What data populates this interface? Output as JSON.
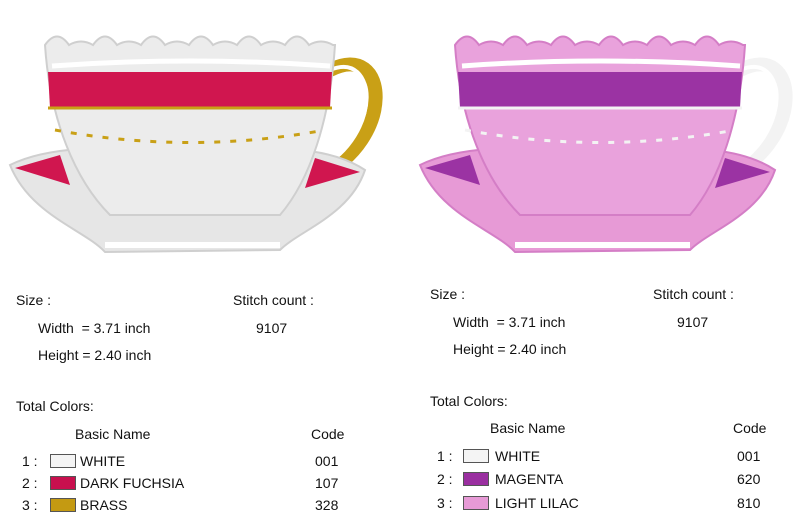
{
  "designs": [
    {
      "size_label": "Size :",
      "width": "Width  = 3.71 inch",
      "height": "Height = 2.40 inch",
      "stitch_count_label": "Stitch count :",
      "stitch_count": "9107",
      "total_colors_label": "Total Colors:",
      "columns": [
        "Basic Name",
        "Code"
      ],
      "colors": [
        {
          "index": "1 :",
          "name": "WHITE",
          "code": "001",
          "swatch": "#f4f4f4"
        },
        {
          "index": "2 :",
          "name": "DARK FUCHSIA",
          "code": "107",
          "swatch": "#c8104e"
        },
        {
          "index": "3 :",
          "name": "BRASS",
          "code": "328",
          "swatch": "#c49a12"
        }
      ]
    },
    {
      "size_label": "Size :",
      "width": "Width  = 3.71 inch",
      "height": "Height = 2.40 inch",
      "stitch_count_label": "Stitch count :",
      "stitch_count": "9107",
      "total_colors_label": "Total Colors:",
      "columns": [
        "Basic Name",
        "Code"
      ],
      "colors": [
        {
          "index": "1 :",
          "name": "WHITE",
          "code": "001",
          "swatch": "#f4f4f4"
        },
        {
          "index": "2 :",
          "name": "MAGENTA",
          "code": "620",
          "swatch": "#9a2fa0"
        },
        {
          "index": "3 :",
          "name": "LIGHT LILAC",
          "code": "810",
          "swatch": "#e79ad6"
        }
      ]
    }
  ]
}
